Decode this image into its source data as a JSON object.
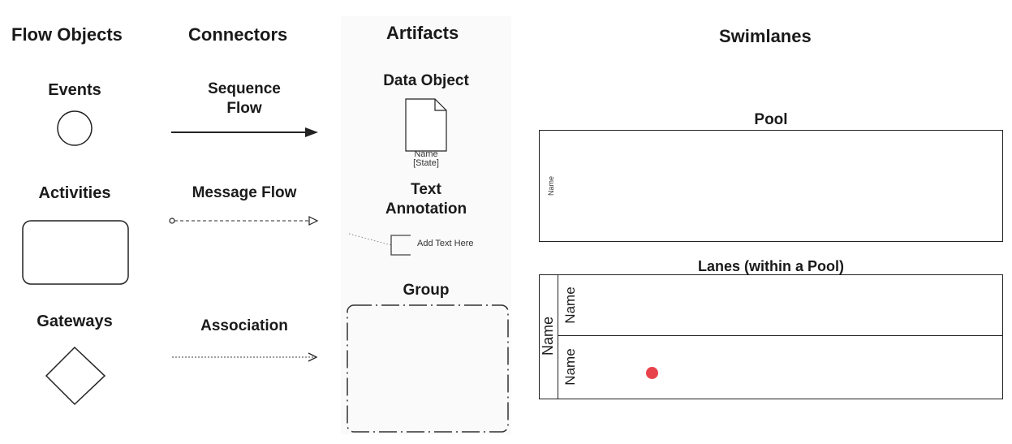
{
  "headers": {
    "flow_objects": "Flow Objects",
    "connectors": "Connectors",
    "artifacts": "Artifacts",
    "swimlanes": "Swimlanes"
  },
  "flow_objects": {
    "events": "Events",
    "activities": "Activities",
    "gateways": "Gateways"
  },
  "connectors": {
    "sequence_flow_line1": "Sequence",
    "sequence_flow_line2": "Flow",
    "message_flow": "Message Flow",
    "association": "Association"
  },
  "artifacts": {
    "data_object": "Data Object",
    "data_object_name": "Name",
    "data_object_state": "[State]",
    "text_annotation_line1": "Text",
    "text_annotation_line2": "Annotation",
    "annotation_text": "Add Text Here",
    "group": "Group"
  },
  "swimlanes": {
    "pool_title": "Pool",
    "pool_name": "Name",
    "lanes_title": "Lanes (within a Pool)",
    "pool_label": "Name",
    "lane1_label": "Name",
    "lane2_label": "Name"
  },
  "colors": {
    "stroke": "#222222",
    "marker_dot": "#e8434b"
  }
}
